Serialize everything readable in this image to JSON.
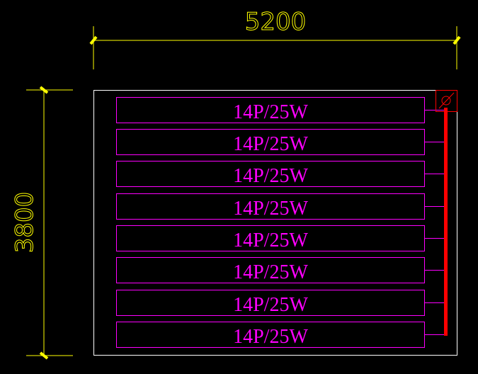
{
  "dimensions": {
    "width_label": "5200",
    "height_label": "3800"
  },
  "panels": [
    {
      "label": "14P/25W"
    },
    {
      "label": "14P/25W"
    },
    {
      "label": "14P/25W"
    },
    {
      "label": "14P/25W"
    },
    {
      "label": "14P/25W"
    },
    {
      "label": "14P/25W"
    },
    {
      "label": "14P/25W"
    },
    {
      "label": "14P/25W"
    }
  ],
  "symbol": {
    "name": "diameter-symbol",
    "glyph": "⌀"
  },
  "colors": {
    "dimension": "#ffff00",
    "panel": "#ff00ff",
    "bus": "#ff0000",
    "outline": "#ffffff",
    "background": "#000000"
  }
}
